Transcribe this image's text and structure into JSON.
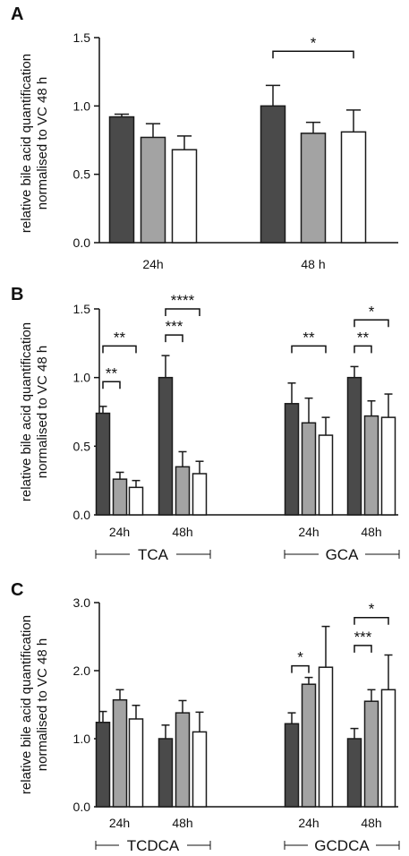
{
  "ylabel_lines": [
    "relative bile acid quantification",
    "normalised to VC 48 h"
  ],
  "colors": {
    "dark": "#4a4a4a",
    "grey": "#a3a3a3",
    "white": "#ffffff",
    "stroke": "#1a1a1a"
  },
  "chart_data": [
    {
      "panel": "A",
      "type": "bar",
      "ylim": [
        0,
        1.5
      ],
      "yticks": [
        "0.0",
        "0.5",
        "1.0",
        "1.5"
      ],
      "yticks_values": [
        0,
        0.5,
        1.0,
        1.5
      ],
      "groups": [
        {
          "label": "24h",
          "bars": [
            {
              "value": 0.92,
              "err": 0.02
            },
            {
              "value": 0.77,
              "err": 0.1
            },
            {
              "value": 0.68,
              "err": 0.1
            }
          ]
        },
        {
          "label": "48 h",
          "bars": [
            {
              "value": 1.0,
              "err": 0.15
            },
            {
              "value": 0.8,
              "err": 0.08
            },
            {
              "value": 0.81,
              "err": 0.16
            }
          ]
        }
      ],
      "compounds": [],
      "significance": [
        {
          "group": 1,
          "from": 0,
          "to": 2,
          "level": 1.4,
          "label": "*"
        }
      ]
    },
    {
      "panel": "B",
      "type": "bar",
      "ylim": [
        0,
        1.5
      ],
      "yticks": [
        "0.0",
        "0.5",
        "1.0",
        "1.5"
      ],
      "yticks_values": [
        0,
        0.5,
        1.0,
        1.5
      ],
      "groups": [
        {
          "label": "24h",
          "bars": [
            {
              "value": 0.74,
              "err": 0.05
            },
            {
              "value": 0.26,
              "err": 0.05
            },
            {
              "value": 0.2,
              "err": 0.05
            }
          ]
        },
        {
          "label": "48h",
          "bars": [
            {
              "value": 1.0,
              "err": 0.16
            },
            {
              "value": 0.35,
              "err": 0.11
            },
            {
              "value": 0.3,
              "err": 0.09
            }
          ]
        },
        {
          "label": "24h",
          "bars": [
            {
              "value": 0.81,
              "err": 0.15
            },
            {
              "value": 0.67,
              "err": 0.18
            },
            {
              "value": 0.58,
              "err": 0.13
            }
          ]
        },
        {
          "label": "48h",
          "bars": [
            {
              "value": 1.0,
              "err": 0.08
            },
            {
              "value": 0.72,
              "err": 0.11
            },
            {
              "value": 0.71,
              "err": 0.17
            }
          ]
        }
      ],
      "compounds": [
        {
          "label": "TCA",
          "groups": [
            0,
            1
          ]
        },
        {
          "label": "GCA",
          "groups": [
            2,
            3
          ]
        }
      ],
      "significance": [
        {
          "group": 0,
          "from": 0,
          "to": 1,
          "level": 0.97,
          "label": "**"
        },
        {
          "group": 0,
          "from": 0,
          "to": 2,
          "level": 1.23,
          "label": "**"
        },
        {
          "group": 1,
          "from": 0,
          "to": 1,
          "level": 1.31,
          "label": "***"
        },
        {
          "group": 1,
          "from": 0,
          "to": 2,
          "level": 1.5,
          "label": "****"
        },
        {
          "group": 2,
          "from": 0,
          "to": 2,
          "level": 1.23,
          "label": "**"
        },
        {
          "group": 3,
          "from": 0,
          "to": 1,
          "level": 1.23,
          "label": "**"
        },
        {
          "group": 3,
          "from": 0,
          "to": 2,
          "level": 1.42,
          "label": "*"
        }
      ]
    },
    {
      "panel": "C",
      "type": "bar",
      "ylim": [
        0,
        3.0
      ],
      "yticks": [
        "0.0",
        "1.0",
        "2.0",
        "3.0"
      ],
      "yticks_values": [
        0,
        1.0,
        2.0,
        3.0
      ],
      "groups": [
        {
          "label": "24h",
          "bars": [
            {
              "value": 1.24,
              "err": 0.16
            },
            {
              "value": 1.57,
              "err": 0.15
            },
            {
              "value": 1.29,
              "err": 0.2
            }
          ]
        },
        {
          "label": "48h",
          "bars": [
            {
              "value": 1.0,
              "err": 0.2
            },
            {
              "value": 1.38,
              "err": 0.18
            },
            {
              "value": 1.1,
              "err": 0.29
            }
          ]
        },
        {
          "label": "24h",
          "bars": [
            {
              "value": 1.22,
              "err": 0.16
            },
            {
              "value": 1.8,
              "err": 0.1
            },
            {
              "value": 2.05,
              "err": 0.6
            }
          ]
        },
        {
          "label": "48h",
          "bars": [
            {
              "value": 1.0,
              "err": 0.15
            },
            {
              "value": 1.55,
              "err": 0.17
            },
            {
              "value": 1.72,
              "err": 0.51
            }
          ]
        }
      ],
      "compounds": [
        {
          "label": "TCDCA",
          "groups": [
            0,
            1
          ]
        },
        {
          "label": "GCDCA",
          "groups": [
            2,
            3
          ]
        }
      ],
      "significance": [
        {
          "group": 2,
          "from": 0,
          "to": 1,
          "level": 2.07,
          "label": "*"
        },
        {
          "group": 3,
          "from": 0,
          "to": 1,
          "level": 2.37,
          "label": "***"
        },
        {
          "group": 3,
          "from": 0,
          "to": 2,
          "level": 2.78,
          "label": "*"
        }
      ]
    }
  ]
}
